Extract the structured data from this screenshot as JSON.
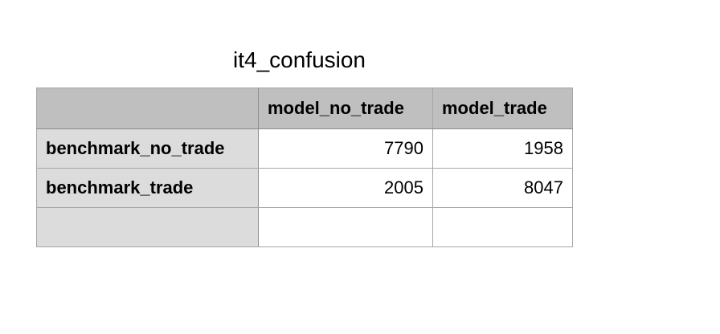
{
  "title": "it4_confusion",
  "table": {
    "corner": "",
    "columns": [
      "model_no_trade",
      "model_trade"
    ],
    "rows": [
      {
        "label": "benchmark_no_trade",
        "cells": [
          "7790",
          "1958"
        ]
      },
      {
        "label": "benchmark_trade",
        "cells": [
          "2005",
          "8047"
        ]
      },
      {
        "label": "",
        "cells": [
          "",
          ""
        ]
      }
    ]
  },
  "colors": {
    "header_bg": "#bfbfbf",
    "rowhead_bg": "#dcdcdc",
    "border": "#a6a6a6"
  }
}
